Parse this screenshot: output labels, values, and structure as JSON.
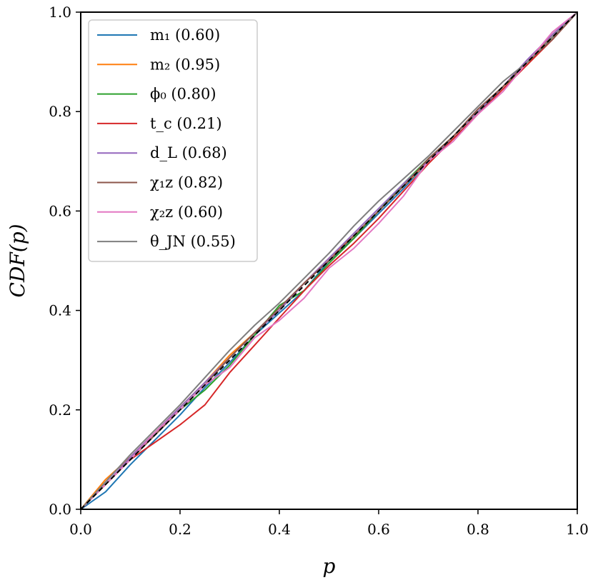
{
  "chart_data": {
    "type": "line",
    "xlabel": "p",
    "ylabel": "CDF(p)",
    "xlim": [
      0.0,
      1.0
    ],
    "ylim": [
      0.0,
      1.0
    ],
    "x_ticks": [
      "0.0",
      "0.2",
      "0.4",
      "0.6",
      "0.8",
      "1.0"
    ],
    "y_ticks": [
      "0.0",
      "0.2",
      "0.4",
      "0.6",
      "0.8",
      "1.0"
    ],
    "grid": false,
    "legend_position": "top-left",
    "reference_line": {
      "style": "dashed",
      "color": "#000000",
      "x": [
        0,
        1
      ],
      "y": [
        0,
        1
      ]
    },
    "series": [
      {
        "name": "m₁ (0.60)",
        "color": "#1f77b4",
        "x": [
          0,
          0.05,
          0.1,
          0.15,
          0.2,
          0.25,
          0.3,
          0.35,
          0.4,
          0.45,
          0.5,
          0.55,
          0.6,
          0.65,
          0.7,
          0.75,
          0.8,
          0.85,
          0.9,
          0.95,
          1.0
        ],
        "y": [
          0,
          0.035,
          0.09,
          0.14,
          0.19,
          0.245,
          0.295,
          0.35,
          0.395,
          0.44,
          0.5,
          0.545,
          0.595,
          0.645,
          0.7,
          0.745,
          0.795,
          0.85,
          0.9,
          0.95,
          1.0
        ]
      },
      {
        "name": "m₂ (0.95)",
        "color": "#ff7f0e",
        "x": [
          0,
          0.05,
          0.1,
          0.15,
          0.2,
          0.25,
          0.3,
          0.35,
          0.4,
          0.45,
          0.5,
          0.55,
          0.6,
          0.65,
          0.7,
          0.75,
          0.8,
          0.85,
          0.9,
          0.95,
          1.0
        ],
        "y": [
          0,
          0.06,
          0.105,
          0.155,
          0.205,
          0.255,
          0.31,
          0.355,
          0.4,
          0.455,
          0.505,
          0.55,
          0.6,
          0.65,
          0.7,
          0.75,
          0.8,
          0.85,
          0.9,
          0.955,
          1.0
        ]
      },
      {
        "name": "ϕ₀ (0.80)",
        "color": "#2ca02c",
        "x": [
          0,
          0.05,
          0.1,
          0.15,
          0.2,
          0.25,
          0.3,
          0.35,
          0.4,
          0.45,
          0.5,
          0.55,
          0.6,
          0.65,
          0.7,
          0.75,
          0.8,
          0.85,
          0.9,
          0.95,
          1.0
        ],
        "y": [
          0,
          0.05,
          0.1,
          0.15,
          0.2,
          0.24,
          0.29,
          0.35,
          0.41,
          0.44,
          0.495,
          0.545,
          0.6,
          0.655,
          0.705,
          0.75,
          0.8,
          0.85,
          0.895,
          0.95,
          1.0
        ]
      },
      {
        "name": "t_c (0.21)",
        "color": "#d62728",
        "x": [
          0,
          0.05,
          0.1,
          0.15,
          0.2,
          0.25,
          0.3,
          0.35,
          0.4,
          0.45,
          0.5,
          0.55,
          0.6,
          0.65,
          0.7,
          0.75,
          0.8,
          0.85,
          0.9,
          0.95,
          1.0
        ],
        "y": [
          0,
          0.05,
          0.1,
          0.135,
          0.17,
          0.21,
          0.275,
          0.33,
          0.385,
          0.44,
          0.49,
          0.535,
          0.585,
          0.64,
          0.695,
          0.745,
          0.795,
          0.845,
          0.895,
          0.945,
          1.0
        ]
      },
      {
        "name": "d_L (0.68)",
        "color": "#9467bd",
        "x": [
          0,
          0.05,
          0.1,
          0.15,
          0.2,
          0.25,
          0.3,
          0.35,
          0.4,
          0.45,
          0.5,
          0.55,
          0.6,
          0.65,
          0.7,
          0.75,
          0.8,
          0.85,
          0.9,
          0.95,
          1.0
        ],
        "y": [
          0,
          0.05,
          0.105,
          0.155,
          0.205,
          0.255,
          0.305,
          0.355,
          0.4,
          0.455,
          0.505,
          0.555,
          0.605,
          0.655,
          0.7,
          0.75,
          0.8,
          0.85,
          0.905,
          0.955,
          1.0
        ]
      },
      {
        "name": "χ₁z (0.82)",
        "color": "#8c564b",
        "x": [
          0,
          0.05,
          0.1,
          0.15,
          0.2,
          0.25,
          0.3,
          0.35,
          0.4,
          0.45,
          0.5,
          0.55,
          0.6,
          0.65,
          0.7,
          0.75,
          0.8,
          0.85,
          0.9,
          0.95,
          1.0
        ],
        "y": [
          0,
          0.05,
          0.1,
          0.15,
          0.2,
          0.25,
          0.305,
          0.355,
          0.405,
          0.455,
          0.5,
          0.55,
          0.6,
          0.65,
          0.705,
          0.75,
          0.805,
          0.85,
          0.9,
          0.945,
          1.0
        ]
      },
      {
        "name": "χ₂z (0.60)",
        "color": "#e377c2",
        "x": [
          0,
          0.05,
          0.1,
          0.15,
          0.2,
          0.25,
          0.3,
          0.35,
          0.4,
          0.45,
          0.5,
          0.55,
          0.6,
          0.65,
          0.7,
          0.75,
          0.8,
          0.85,
          0.9,
          0.95,
          1.0
        ],
        "y": [
          0,
          0.05,
          0.1,
          0.155,
          0.2,
          0.25,
          0.285,
          0.345,
          0.38,
          0.425,
          0.485,
          0.525,
          0.575,
          0.63,
          0.7,
          0.74,
          0.795,
          0.84,
          0.9,
          0.96,
          1.0
        ]
      },
      {
        "name": "θ_JN (0.55)",
        "color": "#7f7f7f",
        "x": [
          0,
          0.05,
          0.1,
          0.15,
          0.2,
          0.25,
          0.3,
          0.35,
          0.4,
          0.45,
          0.5,
          0.55,
          0.6,
          0.65,
          0.7,
          0.75,
          0.8,
          0.85,
          0.9,
          0.95,
          1.0
        ],
        "y": [
          0,
          0.055,
          0.11,
          0.16,
          0.21,
          0.265,
          0.32,
          0.37,
          0.415,
          0.465,
          0.515,
          0.57,
          0.62,
          0.665,
          0.71,
          0.76,
          0.81,
          0.86,
          0.9,
          0.95,
          1.0
        ]
      }
    ]
  }
}
